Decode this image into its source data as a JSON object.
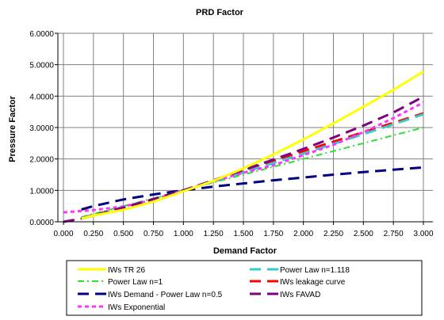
{
  "chart_data": {
    "type": "line",
    "title": "PRD Factor",
    "xlabel": "Demand Factor",
    "ylabel": "Pressure Factor",
    "xlim": [
      0,
      3
    ],
    "ylim": [
      0,
      6
    ],
    "xticks": [
      "0.000",
      "0.250",
      "0.500",
      "0.750",
      "1.000",
      "1.250",
      "1.500",
      "1.750",
      "2.000",
      "2.250",
      "2.500",
      "2.750",
      "3.000"
    ],
    "yticks": [
      "0.0000",
      "1.0000",
      "2.0000",
      "3.0000",
      "4.0000",
      "5.0000",
      "6.0000"
    ],
    "grid": true,
    "legend_position": "bottom",
    "series": [
      {
        "name": "IWs TR 26",
        "color": "#ffff00",
        "dash": "solid",
        "points": [
          [
            0.15,
            0.1
          ],
          [
            0.25,
            0.2
          ],
          [
            0.5,
            0.38
          ],
          [
            0.75,
            0.64
          ],
          [
            1.0,
            0.97
          ],
          [
            1.25,
            1.3
          ],
          [
            1.5,
            1.7
          ],
          [
            1.75,
            2.14
          ],
          [
            2.0,
            2.62
          ],
          [
            2.25,
            3.13
          ],
          [
            2.5,
            3.66
          ],
          [
            2.75,
            4.2
          ],
          [
            3.0,
            4.78
          ]
        ]
      },
      {
        "name": "Power Law n=1.118",
        "color": "#33cccc",
        "dash": "long",
        "points": [
          [
            0.15,
            0.12
          ],
          [
            0.25,
            0.21
          ],
          [
            0.5,
            0.46
          ],
          [
            0.75,
            0.72
          ],
          [
            1.0,
            1.0
          ],
          [
            1.25,
            1.28
          ],
          [
            1.5,
            1.57
          ],
          [
            1.75,
            1.87
          ],
          [
            2.0,
            2.17
          ],
          [
            2.25,
            2.48
          ],
          [
            2.5,
            2.79
          ],
          [
            2.75,
            3.1
          ],
          [
            3.0,
            3.42
          ]
        ]
      },
      {
        "name": "Power Law n=1",
        "color": "#33dd33",
        "dash": "dashdot",
        "points": [
          [
            0.15,
            0.15
          ],
          [
            0.25,
            0.25
          ],
          [
            0.5,
            0.5
          ],
          [
            0.75,
            0.75
          ],
          [
            1.0,
            1.0
          ],
          [
            1.25,
            1.25
          ],
          [
            1.5,
            1.5
          ],
          [
            1.75,
            1.75
          ],
          [
            2.0,
            2.0
          ],
          [
            2.25,
            2.25
          ],
          [
            2.5,
            2.5
          ],
          [
            2.75,
            2.75
          ],
          [
            3.0,
            3.0
          ]
        ]
      },
      {
        "name": "IWs leakage curve",
        "color": "#ff0000",
        "dash": "long",
        "points": [
          [
            0.15,
            0.12
          ],
          [
            0.25,
            0.22
          ],
          [
            0.5,
            0.45
          ],
          [
            0.75,
            0.71
          ],
          [
            1.0,
            1.0
          ],
          [
            1.25,
            1.3
          ],
          [
            1.5,
            1.62
          ],
          [
            1.75,
            1.93
          ],
          [
            2.0,
            2.25
          ],
          [
            2.25,
            2.55
          ],
          [
            2.5,
            2.85
          ],
          [
            2.75,
            3.15
          ],
          [
            3.0,
            3.45
          ]
        ]
      },
      {
        "name": "IWs Demand - Power Law n=0.5",
        "color": "#000080",
        "dash": "long",
        "points": [
          [
            0.15,
            0.39
          ],
          [
            0.25,
            0.5
          ],
          [
            0.5,
            0.71
          ],
          [
            0.75,
            0.87
          ],
          [
            1.0,
            1.0
          ],
          [
            1.25,
            1.12
          ],
          [
            1.5,
            1.22
          ],
          [
            1.75,
            1.32
          ],
          [
            2.0,
            1.41
          ],
          [
            2.25,
            1.5
          ],
          [
            2.5,
            1.58
          ],
          [
            2.75,
            1.66
          ],
          [
            3.0,
            1.73
          ]
        ]
      },
      {
        "name": "IWs FAVAD",
        "color": "#800080",
        "dash": "long",
        "points": [
          [
            0.0,
            0.0
          ],
          [
            0.15,
            0.1
          ],
          [
            0.25,
            0.2
          ],
          [
            0.5,
            0.45
          ],
          [
            0.75,
            0.72
          ],
          [
            1.0,
            1.0
          ],
          [
            1.25,
            1.32
          ],
          [
            1.5,
            1.65
          ],
          [
            1.75,
            1.98
          ],
          [
            2.0,
            2.32
          ],
          [
            2.25,
            2.68
          ],
          [
            2.5,
            3.06
          ],
          [
            2.75,
            3.48
          ],
          [
            3.0,
            3.98
          ]
        ]
      },
      {
        "name": "IWs Exponential",
        "color": "#ff33ff",
        "dash": "short",
        "points": [
          [
            0.0,
            0.3
          ],
          [
            0.25,
            0.37
          ],
          [
            0.5,
            0.49
          ],
          [
            0.75,
            0.7
          ],
          [
            1.0,
            1.0
          ],
          [
            1.25,
            1.29
          ],
          [
            1.5,
            1.56
          ],
          [
            1.75,
            1.8
          ],
          [
            2.0,
            2.12
          ],
          [
            2.25,
            2.45
          ],
          [
            2.5,
            2.85
          ],
          [
            2.75,
            3.3
          ],
          [
            3.0,
            3.8
          ]
        ]
      }
    ],
    "legend_order": [
      0,
      1,
      2,
      3,
      4,
      5,
      6
    ]
  }
}
